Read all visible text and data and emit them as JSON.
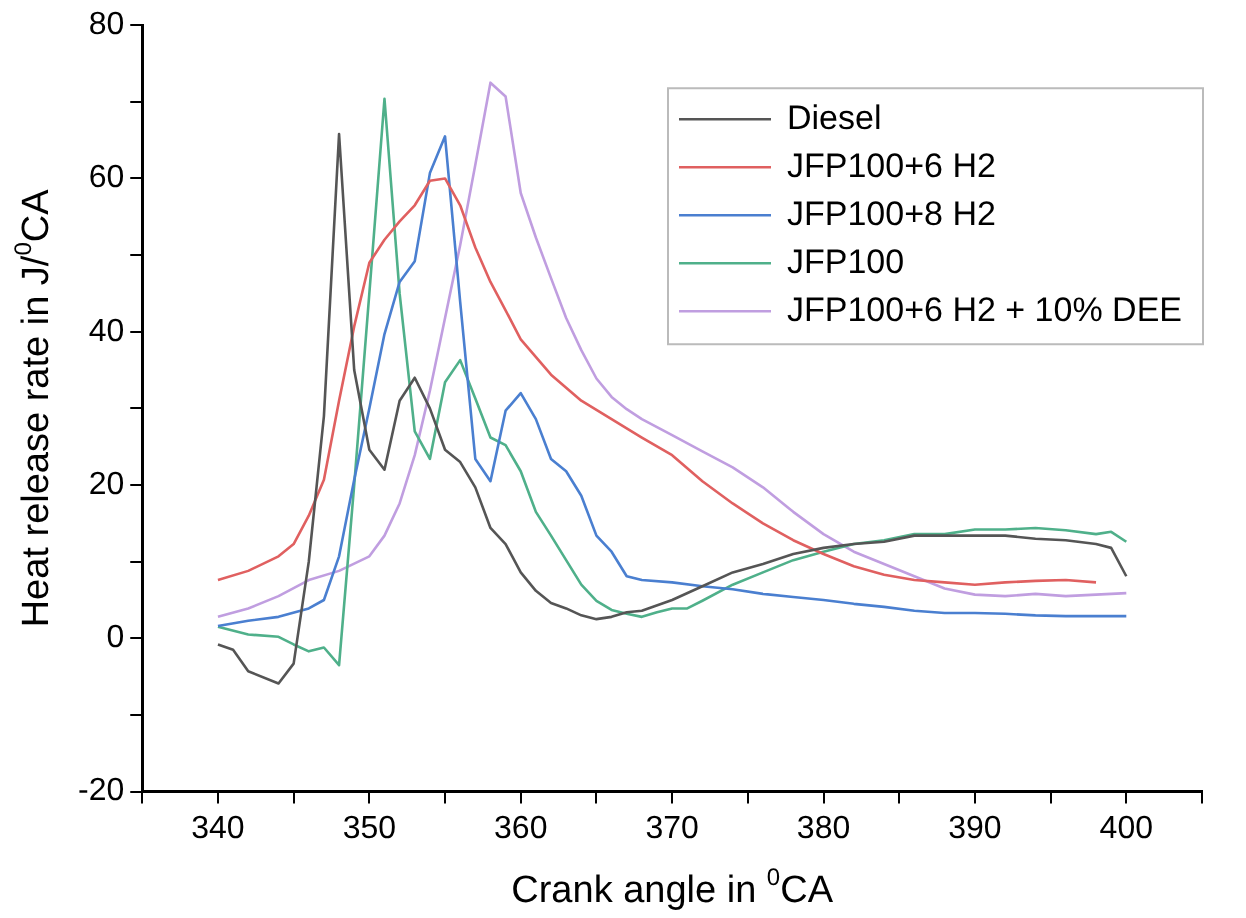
{
  "chart_data": {
    "type": "line",
    "xlabel": "Crank angle in $^{0}$CA",
    "ylabel": "Heat release rate in J/$^{0}$CA",
    "xlim": [
      335,
      405
    ],
    "xticks": [
      {
        "value": 335,
        "label": null
      },
      340,
      {
        "value": 345,
        "label": null
      },
      350,
      {
        "value": 355,
        "label": null
      },
      360,
      {
        "value": 365,
        "label": null
      },
      370,
      {
        "value": 375,
        "label": null
      },
      380,
      {
        "value": 385,
        "label": null
      },
      390,
      {
        "value": 395,
        "label": null
      },
      400,
      {
        "value": 405,
        "label": null
      }
    ],
    "ylim": [
      -20,
      80
    ],
    "yticks": [
      -20,
      {
        "value": -10,
        "label": null
      },
      0,
      {
        "value": 10,
        "label": null
      },
      20,
      {
        "value": 30,
        "label": null
      },
      40,
      {
        "value": 50,
        "label": null
      },
      60,
      {
        "value": 70,
        "label": null
      },
      80
    ],
    "grid": false,
    "legend": "top right",
    "marker": "none",
    "series": [
      {
        "name": "Diesel",
        "color": "#555555",
        "x": [
          340,
          341,
          342,
          344,
          345,
          346,
          347,
          348,
          349,
          350,
          351,
          352,
          353,
          354,
          355,
          356,
          357,
          358,
          359,
          360,
          361,
          362,
          363,
          364,
          365,
          366,
          367,
          368,
          370,
          372,
          374,
          376,
          378,
          380,
          382,
          384,
          386,
          388,
          390,
          392,
          394,
          396,
          398,
          399,
          400
        ],
        "values": [
          -0.8,
          -1.5,
          -4.3,
          -5.9,
          -3.3,
          10,
          29,
          65.8,
          35,
          24.6,
          22,
          31,
          34,
          30,
          24.6,
          23,
          19.7,
          14.4,
          12.3,
          8.6,
          6.2,
          4.6,
          3.9,
          3,
          2.5,
          2.8,
          3.4,
          3.6,
          5,
          6.8,
          8.6,
          9.7,
          11,
          11.8,
          12.3,
          12.6,
          13.4,
          13.4,
          13.4,
          13.4,
          13,
          12.8,
          12.3,
          11.8,
          8.1
        ]
      },
      {
        "name": "JFP100+6 H2",
        "color": "#e06060",
        "x": [
          340,
          342,
          344,
          345,
          346,
          347,
          348,
          349,
          350,
          351,
          352,
          353,
          354,
          355,
          356,
          357,
          358,
          359,
          360,
          362,
          364,
          366,
          368,
          370,
          372,
          374,
          376,
          378,
          380,
          382,
          384,
          386,
          388,
          390,
          392,
          394,
          396,
          398
        ],
        "values": [
          7.6,
          8.8,
          10.7,
          12.3,
          16,
          20.7,
          31,
          40.7,
          49,
          52,
          54.4,
          56.5,
          59.7,
          60,
          56.5,
          51,
          46.5,
          42.8,
          39,
          34.4,
          31,
          28.6,
          26.2,
          23.9,
          20.5,
          17.6,
          15,
          12.8,
          11,
          9.4,
          8.3,
          7.6,
          7.3,
          7,
          7.3,
          7.5,
          7.6,
          7.3
        ]
      },
      {
        "name": "JFP100+8 H2",
        "color": "#4a7fd0",
        "x": [
          340,
          342,
          344,
          346,
          347,
          348,
          349,
          350,
          351,
          352,
          353,
          354,
          355,
          356,
          357,
          358,
          359,
          360,
          361,
          362,
          363,
          364,
          365,
          366,
          367,
          368,
          370,
          372,
          374,
          376,
          378,
          380,
          382,
          384,
          386,
          388,
          390,
          392,
          394,
          396,
          398,
          400
        ],
        "values": [
          1.6,
          2.3,
          2.8,
          3.9,
          5,
          10.7,
          20.7,
          30,
          39.7,
          46.5,
          49.2,
          60.7,
          65.5,
          43.9,
          23.4,
          20.5,
          29.7,
          32,
          28.6,
          23.4,
          21.8,
          18.6,
          13.4,
          11.3,
          8.1,
          7.6,
          7.3,
          6.8,
          6.4,
          5.8,
          5.4,
          5,
          4.5,
          4.1,
          3.6,
          3.3,
          3.3,
          3.2,
          3,
          2.9,
          2.9,
          2.9
        ]
      },
      {
        "name": "JFP100",
        "color": "#4fb08a",
        "x": [
          340,
          342,
          344,
          345,
          346,
          347,
          348,
          349,
          350,
          351,
          352,
          353,
          354,
          355,
          356,
          357,
          358,
          359,
          360,
          361,
          362,
          363,
          364,
          365,
          366,
          367,
          368,
          369,
          370,
          371,
          372,
          374,
          376,
          378,
          380,
          382,
          384,
          386,
          388,
          390,
          392,
          394,
          396,
          398,
          399,
          400
        ],
        "values": [
          1.5,
          0.5,
          0.2,
          -0.8,
          -1.7,
          -1.2,
          -3.5,
          20,
          45,
          70.4,
          45,
          27,
          23.4,
          33.4,
          36.3,
          31.3,
          26.2,
          25.2,
          21.8,
          16.5,
          13.4,
          10.2,
          7,
          4.9,
          3.7,
          3.2,
          2.8,
          3.4,
          3.9,
          3.9,
          4.9,
          7,
          8.6,
          10.2,
          11.3,
          12.3,
          12.8,
          13.6,
          13.6,
          14.2,
          14.2,
          14.4,
          14.1,
          13.6,
          13.9,
          12.6
        ]
      },
      {
        "name": "JFP100+6 H2 + 10% DEE",
        "color": "#c09ee0",
        "x": [
          340,
          342,
          344,
          346,
          348,
          350,
          351,
          352,
          353,
          354,
          355,
          356,
          357,
          358,
          359,
          360,
          361,
          362,
          363,
          364,
          365,
          366,
          367,
          368,
          370,
          372,
          374,
          376,
          378,
          380,
          382,
          384,
          386,
          388,
          390,
          392,
          394,
          396,
          398,
          400
        ],
        "values": [
          2.8,
          3.9,
          5.5,
          7.6,
          8.8,
          10.7,
          13.4,
          17.6,
          23.9,
          32.3,
          41.8,
          51.3,
          61.8,
          72.5,
          70.7,
          58.1,
          52.3,
          47,
          41.8,
          37.6,
          33.9,
          31.5,
          29.9,
          28.6,
          26.5,
          24.4,
          22.3,
          19.7,
          16.5,
          13.6,
          11.3,
          9.7,
          8.1,
          6.5,
          5.7,
          5.5,
          5.8,
          5.5,
          5.7,
          5.9
        ]
      }
    ]
  }
}
